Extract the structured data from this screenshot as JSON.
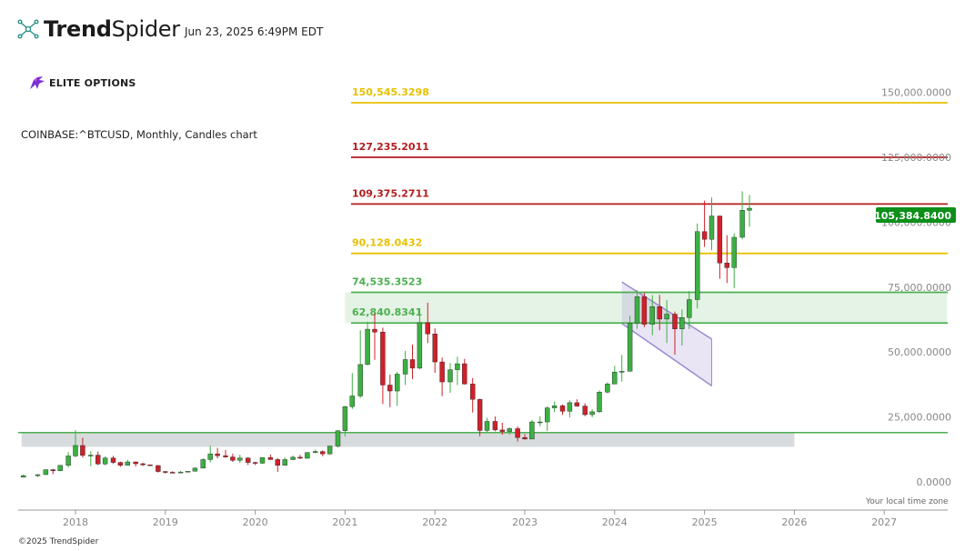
{
  "header": {
    "brand_bold": "Trend",
    "brand_light": "Spider",
    "timestamp": "Jun 23, 2025 6:49PM EDT",
    "sponsor": "ELITE OPTIONS",
    "symbol_line": "COINBASE:^BTCUSD, Monthly, Candles chart",
    "copyright": "©2025 TrendSpider",
    "timezone_note": "Your local time zone"
  },
  "colors": {
    "bull": "#3cb043",
    "bear": "#d0202a",
    "gold": "#e8c100",
    "darkred": "#b31d1d",
    "green_level": "#4caf50",
    "channel": "#9b8ad0",
    "price_badge": "#0d8f1a"
  },
  "chart_data": {
    "type": "candlestick",
    "symbol": "COINBASE:^BTCUSD",
    "interval": "Monthly",
    "ylim": [
      -10000,
      162000
    ],
    "y_ticks": [
      "150,000.0000",
      "125,000.0000",
      "100,000.0000",
      "75,000.0000",
      "50,000.0000",
      "25,000.0000",
      "0.0000"
    ],
    "y_tick_values": [
      150000,
      125000,
      100000,
      75000,
      50000,
      25000,
      0
    ],
    "x_ticks": [
      "2018",
      "2019",
      "2020",
      "2021",
      "2022",
      "2023",
      "2024",
      "2025",
      "2026",
      "2027"
    ],
    "last_price": "105,384.8400",
    "last_price_value": 105384.84,
    "levels": [
      {
        "label": "150,545.3298",
        "value": 146000,
        "color": "gold"
      },
      {
        "label": "127,235.2011",
        "value": 125000,
        "color": "darkred"
      },
      {
        "label": "109,375.2711",
        "value": 107000,
        "color": "darkred"
      },
      {
        "label": "90,128.0432",
        "value": 88000,
        "color": "gold"
      },
      {
        "label": "74,535.3523",
        "value": 73000,
        "color": "green_level"
      },
      {
        "label": "62,840.8341",
        "value": 61200,
        "color": "green_level"
      }
    ],
    "zones": [
      {
        "from": 61200,
        "to": 73000,
        "start": "2021.0",
        "end": "2027.7",
        "color": "#4caf50"
      },
      {
        "from": 13500,
        "to": 19000,
        "start": "2017.4",
        "end": "2026.0",
        "color": "#a9b0b6"
      }
    ],
    "support_line": 19000,
    "channel": {
      "upper": [
        [
          2024.08,
          77000
        ],
        [
          2025.08,
          55000
        ]
      ],
      "lower": [
        [
          2024.08,
          61000
        ],
        [
          2025.08,
          37000
        ]
      ]
    },
    "candles": [
      {
        "t": 2017.42,
        "o": 1800,
        "h": 2900,
        "l": 1700,
        "c": 2400
      },
      {
        "t": 2017.58,
        "o": 2400,
        "h": 3000,
        "l": 1900,
        "c": 2800
      },
      {
        "t": 2017.67,
        "o": 2800,
        "h": 4800,
        "l": 2700,
        "c": 4700
      },
      {
        "t": 2017.75,
        "o": 4700,
        "h": 5000,
        "l": 3000,
        "c": 4300
      },
      {
        "t": 2017.83,
        "o": 4300,
        "h": 6400,
        "l": 4100,
        "c": 6400
      },
      {
        "t": 2017.92,
        "o": 6400,
        "h": 11500,
        "l": 5500,
        "c": 10000
      },
      {
        "t": 2018.0,
        "o": 10000,
        "h": 19900,
        "l": 9500,
        "c": 14000
      },
      {
        "t": 2018.08,
        "o": 14000,
        "h": 17000,
        "l": 9400,
        "c": 10200
      },
      {
        "t": 2018.17,
        "o": 10200,
        "h": 11800,
        "l": 6000,
        "c": 10300
      },
      {
        "t": 2018.25,
        "o": 10300,
        "h": 11700,
        "l": 6500,
        "c": 6900
      },
      {
        "t": 2018.33,
        "o": 6900,
        "h": 9800,
        "l": 6400,
        "c": 9200
      },
      {
        "t": 2018.42,
        "o": 9200,
        "h": 10000,
        "l": 7000,
        "c": 7500
      },
      {
        "t": 2018.5,
        "o": 7500,
        "h": 7800,
        "l": 5800,
        "c": 6400
      },
      {
        "t": 2018.58,
        "o": 6400,
        "h": 8500,
        "l": 6300,
        "c": 7700
      },
      {
        "t": 2018.67,
        "o": 7700,
        "h": 7800,
        "l": 5900,
        "c": 7000
      },
      {
        "t": 2018.75,
        "o": 7000,
        "h": 7400,
        "l": 6100,
        "c": 6600
      },
      {
        "t": 2018.83,
        "o": 6600,
        "h": 6700,
        "l": 6200,
        "c": 6300
      },
      {
        "t": 2018.92,
        "o": 6300,
        "h": 6500,
        "l": 3600,
        "c": 4000
      },
      {
        "t": 2019.0,
        "o": 4000,
        "h": 4200,
        "l": 3200,
        "c": 3700
      },
      {
        "t": 2019.08,
        "o": 3700,
        "h": 4100,
        "l": 3400,
        "c": 3500
      },
      {
        "t": 2019.17,
        "o": 3500,
        "h": 4200,
        "l": 3400,
        "c": 3800
      },
      {
        "t": 2019.25,
        "o": 3800,
        "h": 4100,
        "l": 3700,
        "c": 4100
      },
      {
        "t": 2019.33,
        "o": 4100,
        "h": 5600,
        "l": 4100,
        "c": 5300
      },
      {
        "t": 2019.42,
        "o": 5300,
        "h": 9100,
        "l": 5200,
        "c": 8600
      },
      {
        "t": 2019.5,
        "o": 8600,
        "h": 13900,
        "l": 7500,
        "c": 10800
      },
      {
        "t": 2019.58,
        "o": 10800,
        "h": 13100,
        "l": 9100,
        "c": 10100
      },
      {
        "t": 2019.67,
        "o": 10100,
        "h": 12300,
        "l": 9300,
        "c": 9600
      },
      {
        "t": 2019.75,
        "o": 9600,
        "h": 10900,
        "l": 7700,
        "c": 8300
      },
      {
        "t": 2019.83,
        "o": 8300,
        "h": 10500,
        "l": 7300,
        "c": 9200
      },
      {
        "t": 2019.92,
        "o": 9200,
        "h": 9500,
        "l": 6500,
        "c": 7500
      },
      {
        "t": 2020.0,
        "o": 7500,
        "h": 7700,
        "l": 6500,
        "c": 7200
      },
      {
        "t": 2020.08,
        "o": 7200,
        "h": 9500,
        "l": 6900,
        "c": 9400
      },
      {
        "t": 2020.17,
        "o": 9400,
        "h": 10500,
        "l": 8500,
        "c": 8600
      },
      {
        "t": 2020.25,
        "o": 8600,
        "h": 9200,
        "l": 3800,
        "c": 6400
      },
      {
        "t": 2020.33,
        "o": 6400,
        "h": 9500,
        "l": 6200,
        "c": 8600
      },
      {
        "t": 2020.42,
        "o": 8600,
        "h": 10100,
        "l": 8400,
        "c": 9500
      },
      {
        "t": 2020.5,
        "o": 9500,
        "h": 10400,
        "l": 8900,
        "c": 9100
      },
      {
        "t": 2020.58,
        "o": 9100,
        "h": 11500,
        "l": 9000,
        "c": 11300
      },
      {
        "t": 2020.67,
        "o": 11300,
        "h": 12500,
        "l": 11000,
        "c": 11700
      },
      {
        "t": 2020.75,
        "o": 11700,
        "h": 12100,
        "l": 9900,
        "c": 10800
      },
      {
        "t": 2020.83,
        "o": 10800,
        "h": 14000,
        "l": 10400,
        "c": 13800
      },
      {
        "t": 2020.92,
        "o": 13800,
        "h": 19900,
        "l": 13200,
        "c": 19700
      },
      {
        "t": 2021.0,
        "o": 19700,
        "h": 29300,
        "l": 17600,
        "c": 29000
      },
      {
        "t": 2021.08,
        "o": 29000,
        "h": 41900,
        "l": 28100,
        "c": 33100
      },
      {
        "t": 2021.17,
        "o": 33100,
        "h": 58400,
        "l": 32300,
        "c": 45200
      },
      {
        "t": 2021.25,
        "o": 45200,
        "h": 61700,
        "l": 44900,
        "c": 58800
      },
      {
        "t": 2021.33,
        "o": 58800,
        "h": 64900,
        "l": 47000,
        "c": 57700
      },
      {
        "t": 2021.42,
        "o": 57700,
        "h": 59400,
        "l": 30000,
        "c": 37300
      },
      {
        "t": 2021.5,
        "o": 37300,
        "h": 41300,
        "l": 28800,
        "c": 35000
      },
      {
        "t": 2021.58,
        "o": 35000,
        "h": 42400,
        "l": 29300,
        "c": 41500
      },
      {
        "t": 2021.67,
        "o": 41500,
        "h": 50500,
        "l": 37300,
        "c": 47100
      },
      {
        "t": 2021.75,
        "o": 47100,
        "h": 52900,
        "l": 39600,
        "c": 43800
      },
      {
        "t": 2021.83,
        "o": 43800,
        "h": 66900,
        "l": 43300,
        "c": 61300
      },
      {
        "t": 2021.92,
        "o": 61300,
        "h": 69000,
        "l": 53500,
        "c": 57000
      },
      {
        "t": 2022.0,
        "o": 57000,
        "h": 59100,
        "l": 42000,
        "c": 46200
      },
      {
        "t": 2022.08,
        "o": 46200,
        "h": 47900,
        "l": 33000,
        "c": 38500
      },
      {
        "t": 2022.17,
        "o": 38500,
        "h": 45800,
        "l": 34300,
        "c": 43200
      },
      {
        "t": 2022.25,
        "o": 43200,
        "h": 48200,
        "l": 37300,
        "c": 45500
      },
      {
        "t": 2022.33,
        "o": 45500,
        "h": 47400,
        "l": 37500,
        "c": 37700
      },
      {
        "t": 2022.42,
        "o": 37700,
        "h": 40000,
        "l": 26700,
        "c": 31800
      },
      {
        "t": 2022.5,
        "o": 31800,
        "h": 32000,
        "l": 17600,
        "c": 19800
      },
      {
        "t": 2022.58,
        "o": 19800,
        "h": 24700,
        "l": 18800,
        "c": 23300
      },
      {
        "t": 2022.67,
        "o": 23300,
        "h": 25200,
        "l": 19500,
        "c": 20000
      },
      {
        "t": 2022.75,
        "o": 20000,
        "h": 22800,
        "l": 18200,
        "c": 19400
      },
      {
        "t": 2022.83,
        "o": 19400,
        "h": 21000,
        "l": 18200,
        "c": 20500
      },
      {
        "t": 2022.92,
        "o": 20500,
        "h": 21400,
        "l": 15500,
        "c": 17100
      },
      {
        "t": 2023.0,
        "o": 17100,
        "h": 18400,
        "l": 16300,
        "c": 16500
      },
      {
        "t": 2023.08,
        "o": 16500,
        "h": 23900,
        "l": 16500,
        "c": 23100
      },
      {
        "t": 2023.17,
        "o": 23100,
        "h": 25200,
        "l": 21400,
        "c": 23100
      },
      {
        "t": 2023.25,
        "o": 23100,
        "h": 29200,
        "l": 19600,
        "c": 28500
      },
      {
        "t": 2023.33,
        "o": 28500,
        "h": 31000,
        "l": 26900,
        "c": 29300
      },
      {
        "t": 2023.42,
        "o": 29300,
        "h": 29800,
        "l": 25800,
        "c": 27200
      },
      {
        "t": 2023.5,
        "o": 27200,
        "h": 31400,
        "l": 24800,
        "c": 30500
      },
      {
        "t": 2023.58,
        "o": 30500,
        "h": 31800,
        "l": 28900,
        "c": 29200
      },
      {
        "t": 2023.67,
        "o": 29200,
        "h": 30300,
        "l": 25300,
        "c": 25900
      },
      {
        "t": 2023.75,
        "o": 25900,
        "h": 28000,
        "l": 24900,
        "c": 27000
      },
      {
        "t": 2023.83,
        "o": 27000,
        "h": 35200,
        "l": 26600,
        "c": 34600
      },
      {
        "t": 2023.92,
        "o": 34600,
        "h": 38400,
        "l": 34100,
        "c": 37700
      },
      {
        "t": 2024.0,
        "o": 37700,
        "h": 44700,
        "l": 37600,
        "c": 42300
      },
      {
        "t": 2024.08,
        "o": 42300,
        "h": 48900,
        "l": 38600,
        "c": 42600
      },
      {
        "t": 2024.17,
        "o": 42600,
        "h": 64000,
        "l": 42500,
        "c": 61200
      },
      {
        "t": 2024.25,
        "o": 61200,
        "h": 73800,
        "l": 59000,
        "c": 71300
      },
      {
        "t": 2024.33,
        "o": 71300,
        "h": 72800,
        "l": 59600,
        "c": 60700
      },
      {
        "t": 2024.42,
        "o": 60700,
        "h": 71900,
        "l": 56500,
        "c": 67500
      },
      {
        "t": 2024.5,
        "o": 67500,
        "h": 72000,
        "l": 58400,
        "c": 62700
      },
      {
        "t": 2024.58,
        "o": 62700,
        "h": 70000,
        "l": 53500,
        "c": 64600
      },
      {
        "t": 2024.67,
        "o": 64600,
        "h": 65600,
        "l": 49000,
        "c": 58900
      },
      {
        "t": 2024.75,
        "o": 58900,
        "h": 66400,
        "l": 52500,
        "c": 63300
      },
      {
        "t": 2024.83,
        "o": 63300,
        "h": 73500,
        "l": 58900,
        "c": 70200
      },
      {
        "t": 2024.92,
        "o": 70200,
        "h": 99500,
        "l": 66800,
        "c": 96400
      },
      {
        "t": 2025.0,
        "o": 96400,
        "h": 108300,
        "l": 90500,
        "c": 93400
      },
      {
        "t": 2025.08,
        "o": 93400,
        "h": 109500,
        "l": 89200,
        "c": 102400
      },
      {
        "t": 2025.17,
        "o": 102400,
        "h": 102500,
        "l": 78200,
        "c": 84300
      },
      {
        "t": 2025.25,
        "o": 84300,
        "h": 95000,
        "l": 76600,
        "c": 82500
      },
      {
        "t": 2025.33,
        "o": 82500,
        "h": 95800,
        "l": 74600,
        "c": 94200
      },
      {
        "t": 2025.42,
        "o": 94200,
        "h": 111900,
        "l": 93400,
        "c": 104600
      },
      {
        "t": 2025.5,
        "o": 104600,
        "h": 110500,
        "l": 98200,
        "c": 105384.84
      }
    ]
  }
}
